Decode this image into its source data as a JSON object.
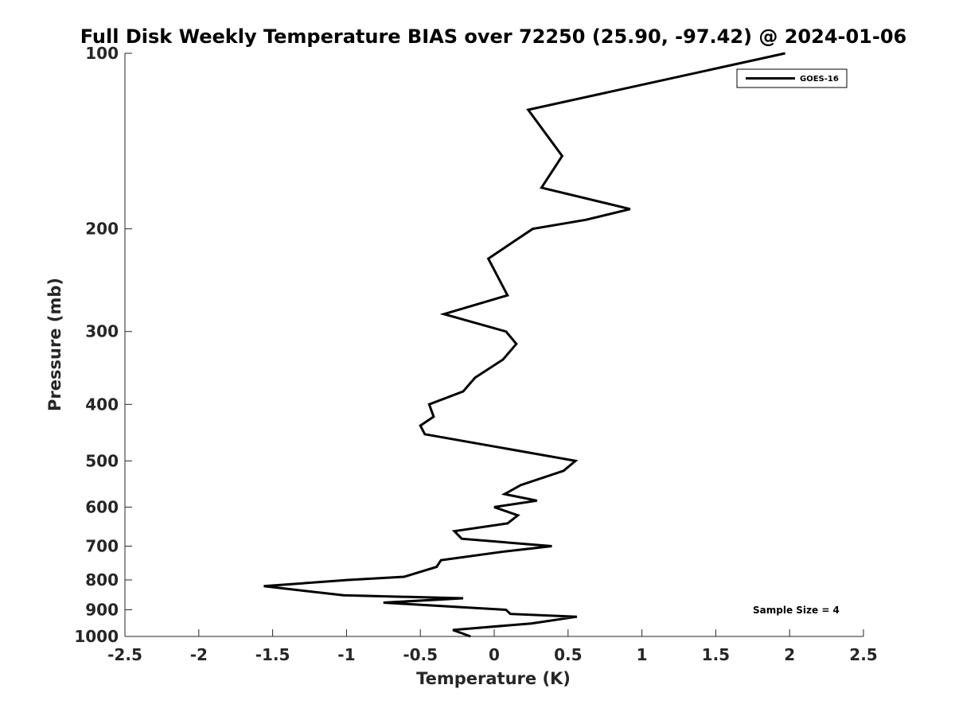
{
  "chart_data": {
    "type": "line",
    "title": "Full Disk Weekly Temperature BIAS over 72250 (25.90, -97.42) @ 2024-01-06",
    "xlabel": "Temperature (K)",
    "ylabel": "Pressure (mb)",
    "xlim": [
      -2.5,
      2.5
    ],
    "ylim": [
      100,
      1000
    ],
    "y_scale": "log",
    "y_reversed": true,
    "x_ticks": [
      -2.5,
      -2,
      -1.5,
      -1,
      -0.5,
      0,
      0.5,
      1,
      1.5,
      2,
      2.5
    ],
    "x_tick_labels": [
      "-2.5",
      "-2",
      "-1.5",
      "-1",
      "-0.5",
      "0",
      "0.5",
      "1",
      "1.5",
      "2",
      "2.5"
    ],
    "y_ticks": [
      100,
      200,
      300,
      400,
      500,
      600,
      700,
      800,
      900,
      1000
    ],
    "y_tick_labels": [
      "100",
      "200",
      "300",
      "400",
      "500",
      "600",
      "700",
      "800",
      "900",
      "1000"
    ],
    "grid": false,
    "legend_position": "top-right",
    "annotation": "Sample Size = 4",
    "series": [
      {
        "name": "GOES-16",
        "color": "#000000",
        "points": [
          {
            "x": 1.97,
            "y": 100
          },
          {
            "x": 0.23,
            "y": 125
          },
          {
            "x": 0.46,
            "y": 150
          },
          {
            "x": 0.32,
            "y": 170
          },
          {
            "x": 0.92,
            "y": 185
          },
          {
            "x": 0.62,
            "y": 193
          },
          {
            "x": 0.26,
            "y": 200
          },
          {
            "x": -0.04,
            "y": 225
          },
          {
            "x": 0.09,
            "y": 260
          },
          {
            "x": -0.34,
            "y": 280
          },
          {
            "x": 0.08,
            "y": 300
          },
          {
            "x": 0.15,
            "y": 315
          },
          {
            "x": 0.06,
            "y": 335
          },
          {
            "x": -0.13,
            "y": 360
          },
          {
            "x": -0.21,
            "y": 380
          },
          {
            "x": -0.44,
            "y": 400
          },
          {
            "x": -0.41,
            "y": 420
          },
          {
            "x": -0.5,
            "y": 435
          },
          {
            "x": -0.47,
            "y": 450
          },
          {
            "x": 0.55,
            "y": 500
          },
          {
            "x": 0.47,
            "y": 520
          },
          {
            "x": 0.18,
            "y": 550
          },
          {
            "x": 0.07,
            "y": 570
          },
          {
            "x": 0.29,
            "y": 585
          },
          {
            "x": 0.0,
            "y": 600
          },
          {
            "x": 0.16,
            "y": 620
          },
          {
            "x": 0.09,
            "y": 640
          },
          {
            "x": -0.27,
            "y": 660
          },
          {
            "x": -0.22,
            "y": 680
          },
          {
            "x": 0.39,
            "y": 700
          },
          {
            "x": 0.07,
            "y": 715
          },
          {
            "x": -0.36,
            "y": 740
          },
          {
            "x": -0.39,
            "y": 760
          },
          {
            "x": -0.61,
            "y": 790
          },
          {
            "x": -0.99,
            "y": 800
          },
          {
            "x": -1.56,
            "y": 820
          },
          {
            "x": -1.02,
            "y": 850
          },
          {
            "x": -0.21,
            "y": 860
          },
          {
            "x": -0.75,
            "y": 875
          },
          {
            "x": 0.08,
            "y": 900
          },
          {
            "x": 0.11,
            "y": 915
          },
          {
            "x": 0.56,
            "y": 925
          },
          {
            "x": 0.25,
            "y": 950
          },
          {
            "x": -0.28,
            "y": 975
          },
          {
            "x": -0.16,
            "y": 1000
          }
        ]
      }
    ]
  }
}
